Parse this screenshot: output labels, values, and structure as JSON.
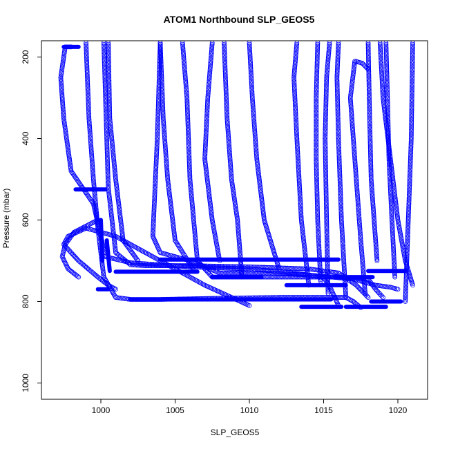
{
  "chart_data": {
    "type": "scatter",
    "title": "ATOM1 Northbound SLP_GEOS5",
    "xlabel": "SLP_GEOS5",
    "ylabel": "Pressure (mbar)",
    "xlim": [
      996,
      1022
    ],
    "ylim": [
      1040,
      160
    ],
    "y_reversed": true,
    "x_ticks": [
      1000,
      1005,
      1010,
      1015,
      1020
    ],
    "y_ticks": [
      200,
      400,
      600,
      800,
      1000
    ],
    "marker": "open-circle",
    "color": "#0000ff",
    "grid": false,
    "series": [
      {
        "x": [
          1016.0,
          1015.5,
          1015.0,
          1013.0,
          1010.0,
          1006.0,
          1002.0,
          1000.3,
          1000.0,
          999.5,
          998.0,
          997.5,
          997.3,
          997.6,
          998.0
        ],
        "y": [
          810,
          770,
          740,
          730,
          720,
          715,
          705,
          690,
          640,
          560,
          480,
          350,
          250,
          175,
          175
        ]
      },
      {
        "x": [
          1017.5,
          1017.0,
          1016.5,
          1015.5,
          1012.0,
          1008.0,
          1004.0,
          1002.0,
          1001.0,
          1000.2,
          999.8,
          999.5,
          999.2,
          999.0
        ],
        "y": [
          815,
          800,
          790,
          790,
          790,
          792,
          795,
          795,
          790,
          740,
          620,
          500,
          350,
          165
        ]
      },
      {
        "x": [
          1018.0,
          1017.2,
          1016.0,
          1014.0,
          1010.0,
          1006.0,
          1003.0,
          1002.0,
          1001.0,
          1000.5,
          1000.2
        ],
        "y": [
          790,
          760,
          730,
          720,
          715,
          712,
          712,
          710,
          680,
          520,
          165
        ]
      },
      {
        "x": [
          1020.0,
          1019.5,
          1018.5,
          1017.0,
          1014.0,
          1011.0,
          1008.0,
          1006.0,
          1004.0,
          1003.5,
          1003.8,
          1004.0
        ],
        "y": [
          770,
          765,
          760,
          745,
          735,
          730,
          730,
          700,
          680,
          640,
          400,
          165
        ]
      },
      {
        "x": [
          1019.0,
          1018.5,
          1018.0,
          1016.0,
          1013.0,
          1010.0,
          1007.5,
          1006.5,
          1006.0,
          1005.8,
          1005.5
        ],
        "y": [
          790,
          770,
          745,
          740,
          740,
          740,
          740,
          700,
          500,
          300,
          165
        ]
      },
      {
        "x": [
          1021.0,
          1020.5,
          1020.0,
          1019.5,
          1019.0,
          1018.8
        ],
        "y": [
          760,
          700,
          600,
          450,
          300,
          165
        ]
      },
      {
        "x": [
          1020.5,
          1020.7,
          1020.9,
          1021.0
        ],
        "y": [
          800,
          600,
          400,
          165
        ]
      },
      {
        "x": [
          1016.5,
          1016.2,
          1016.0,
          1015.9,
          1016.0
        ],
        "y": [
          790,
          600,
          400,
          250,
          165
        ]
      },
      {
        "x": [
          1015.3,
          1015.2,
          1015.1,
          1015.2,
          1015.4
        ],
        "y": [
          780,
          600,
          400,
          250,
          165
        ]
      },
      {
        "x": [
          1014.0,
          1013.5,
          1013.2,
          1013.0,
          1013.2
        ],
        "y": [
          760,
          600,
          400,
          250,
          165
        ]
      },
      {
        "x": [
          1012.0,
          1011.0,
          1010.5,
          1010.2,
          1010.0
        ],
        "y": [
          720,
          600,
          450,
          300,
          165
        ]
      },
      {
        "x": [
          1009.5,
          1009.2,
          1008.8,
          1008.5,
          1008.3
        ],
        "y": [
          740,
          600,
          500,
          350,
          165
        ]
      },
      {
        "x": [
          1008.0,
          1007.5,
          1007.0,
          1007.2,
          1007.5
        ],
        "y": [
          700,
          600,
          450,
          300,
          165
        ]
      },
      {
        "x": [
          1006.2,
          1005.0,
          1004.5,
          1004.2,
          1004.0
        ],
        "y": [
          720,
          650,
          500,
          350,
          165
        ]
      },
      {
        "x": [
          1002.5,
          1001.5,
          1001.0,
          1000.6,
          1000.5
        ],
        "y": [
          700,
          650,
          500,
          350,
          165
        ]
      },
      {
        "x": [
          1001.0,
          1000.5,
          999.8,
          998.5,
          997.5,
          997.8,
          999.0,
          1001.0,
          1004.0,
          1007.0,
          1010.0
        ],
        "y": [
          770,
          760,
          740,
          700,
          660,
          640,
          620,
          640,
          700,
          760,
          810
        ]
      },
      {
        "x": [
          998.5,
          997.8,
          997.4,
          997.6,
          998.2,
          999.8
        ],
        "y": [
          740,
          720,
          690,
          660,
          630,
          600
        ]
      },
      {
        "x": [
          1017.8,
          1017.5,
          1017.2,
          1017.0,
          1016.8,
          1017.1,
          1017.6,
          1018.0
        ],
        "y": [
          780,
          650,
          500,
          400,
          300,
          210,
          215,
          230
        ]
      },
      {
        "x": [
          1018.6,
          1018.4,
          1018.2,
          1018.1,
          1018.0
        ],
        "y": [
          700,
          600,
          500,
          350,
          165
        ]
      },
      {
        "x": [
          1019.8,
          1019.6,
          1019.4,
          1019.3,
          1019.2
        ],
        "y": [
          740,
          600,
          450,
          300,
          165
        ]
      },
      {
        "x": [
          1014.8,
          1014.6,
          1014.5,
          1014.5,
          1014.6
        ],
        "y": [
          750,
          600,
          450,
          300,
          165
        ]
      }
    ],
    "solid_segments": [
      {
        "x": [
          997.5,
          998.5
        ],
        "y": [
          175,
          175
        ]
      },
      {
        "x": [
          998.3,
          1000.3
        ],
        "y": [
          525,
          525
        ]
      },
      {
        "x": [
          999.8,
          1000.5
        ],
        "y": [
          770,
          770
        ]
      },
      {
        "x": [
          1004.0,
          1016.0
        ],
        "y": [
          697,
          697
        ]
      },
      {
        "x": [
          1001.0,
          1006.5
        ],
        "y": [
          727,
          727
        ]
      },
      {
        "x": [
          1007.5,
          1010.8
        ],
        "y": [
          740,
          740
        ]
      },
      {
        "x": [
          1002.0,
          1015.5
        ],
        "y": [
          795,
          795
        ]
      },
      {
        "x": [
          1012.5,
          1016.5
        ],
        "y": [
          760,
          760
        ]
      },
      {
        "x": [
          1013.5,
          1016.2
        ],
        "y": [
          813,
          813
        ]
      },
      {
        "x": [
          1016.5,
          1019.2
        ],
        "y": [
          813,
          813
        ]
      },
      {
        "x": [
          1018.2,
          1020.2
        ],
        "y": [
          800,
          800
        ]
      },
      {
        "x": [
          1018.0,
          1020.5
        ],
        "y": [
          725,
          725
        ]
      },
      {
        "x": [
          1015.8,
          1018.3
        ],
        "y": [
          740,
          740
        ]
      },
      {
        "x": [
          1000.0,
          1000.1
        ],
        "y": [
          600,
          700
        ]
      },
      {
        "x": [
          1000.4,
          1000.6
        ],
        "y": [
          650,
          725
        ]
      }
    ]
  }
}
